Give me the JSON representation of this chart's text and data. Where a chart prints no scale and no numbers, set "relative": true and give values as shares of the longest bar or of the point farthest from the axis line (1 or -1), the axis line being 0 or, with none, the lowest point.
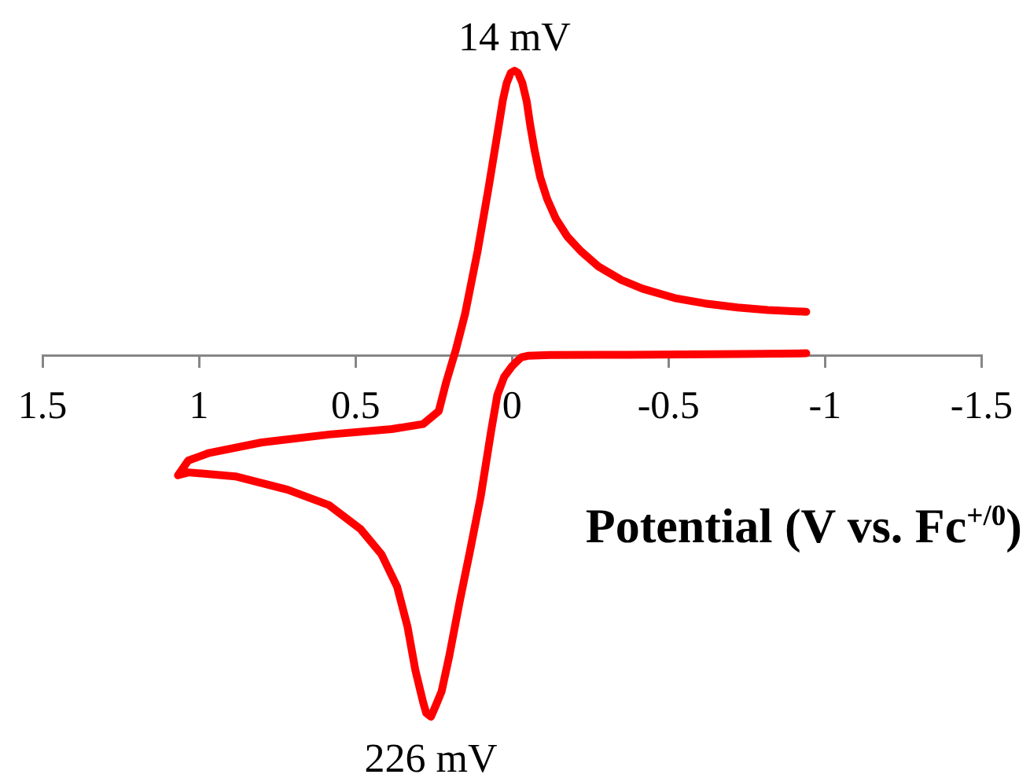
{
  "chart_data": {
    "type": "line",
    "relative": true,
    "color": "#ff0000",
    "x": [
      -0.94,
      -0.72,
      -0.37,
      -0.12,
      -0.05,
      -0.03,
      -0.017,
      0.0,
      0.025,
      0.047,
      0.0585,
      0.067,
      0.1,
      0.134,
      0.167,
      0.2,
      0.225,
      0.244,
      0.259,
      0.274,
      0.284,
      0.309,
      0.334,
      0.367,
      0.417,
      0.484,
      0.584,
      0.717,
      0.884,
      1.034,
      1.067,
      1.034,
      0.967,
      0.8,
      0.584,
      0.384,
      0.284,
      0.234,
      0.21,
      0.18,
      0.15,
      0.11,
      0.075,
      0.042,
      0.029,
      0.017,
      0.004,
      -0.008,
      -0.019,
      -0.033,
      -0.047,
      -0.058,
      -0.072,
      -0.09,
      -0.112,
      -0.14,
      -0.177,
      -0.22,
      -0.277,
      -0.35,
      -0.417,
      -0.52,
      -0.617,
      -0.72,
      -0.817,
      -0.94
    ],
    "values": [
      0.007,
      0.005,
      0.003,
      0.002,
      0.0,
      -0.004,
      -0.014,
      -0.029,
      -0.058,
      -0.109,
      -0.167,
      -0.21,
      -0.39,
      -0.54,
      -0.68,
      -0.83,
      -0.93,
      -0.97,
      -1,
      -0.99,
      -0.96,
      -0.87,
      -0.75,
      -0.64,
      -0.55,
      -0.48,
      -0.414,
      -0.371,
      -0.334,
      -0.323,
      -0.331,
      -0.29,
      -0.269,
      -0.24,
      -0.218,
      -0.203,
      -0.189,
      -0.153,
      -0.072,
      0.015,
      0.116,
      0.29,
      0.465,
      0.64,
      0.71,
      0.756,
      0.784,
      0.79,
      0.784,
      0.756,
      0.705,
      0.64,
      0.57,
      0.495,
      0.435,
      0.38,
      0.33,
      0.29,
      0.247,
      0.21,
      0.186,
      0.16,
      0.145,
      0.134,
      0.127,
      0.122
    ],
    "xlim": [
      1.5,
      -1.5
    ],
    "xticks": [
      1.5,
      1,
      0.5,
      0,
      -0.5,
      -1,
      -1.5
    ],
    "xlabel": "Potential (V vs. Fc$^{+/0}$)",
    "annotations": [
      {
        "text": "14 mV",
        "x": -0.008,
        "y": 0.79
      },
      {
        "text": "226 mV",
        "x": 0.259,
        "y": -1
      }
    ]
  }
}
